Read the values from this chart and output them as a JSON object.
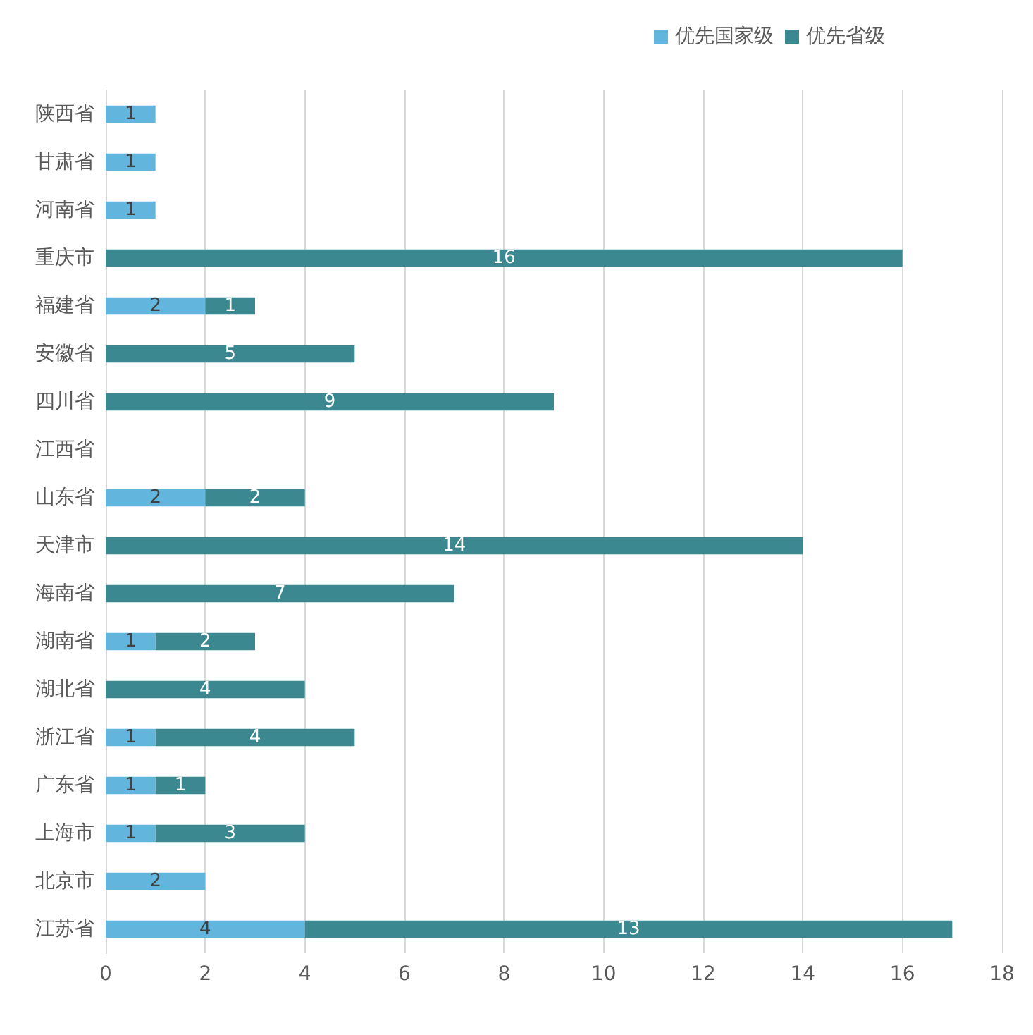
{
  "chart_data": {
    "type": "bar",
    "orientation": "horizontal",
    "stacked": true,
    "categories": [
      "陕西省",
      "甘肃省",
      "河南省",
      "重庆市",
      "福建省",
      "安徽省",
      "四川省",
      "江西省",
      "山东省",
      "天津市",
      "海南省",
      "湖南省",
      "湖北省",
      "浙江省",
      "广东省",
      "上海市",
      "北京市",
      "江苏省"
    ],
    "series": [
      {
        "name": "优先国家级",
        "color": "#62b5dc",
        "values": [
          1,
          1,
          1,
          null,
          2,
          null,
          null,
          null,
          2,
          null,
          null,
          1,
          null,
          1,
          1,
          1,
          2,
          4
        ]
      },
      {
        "name": "优先省级",
        "color": "#3b8891",
        "values": [
          null,
          null,
          null,
          16,
          1,
          5,
          9,
          null,
          2,
          14,
          7,
          2,
          4,
          4,
          1,
          3,
          null,
          13
        ]
      }
    ],
    "xlim": [
      0,
      18
    ],
    "xticks": [
      0,
      2,
      4,
      6,
      8,
      10,
      12,
      14,
      16,
      18
    ],
    "grid": "x",
    "legend": "top right",
    "data_labels": true
  }
}
